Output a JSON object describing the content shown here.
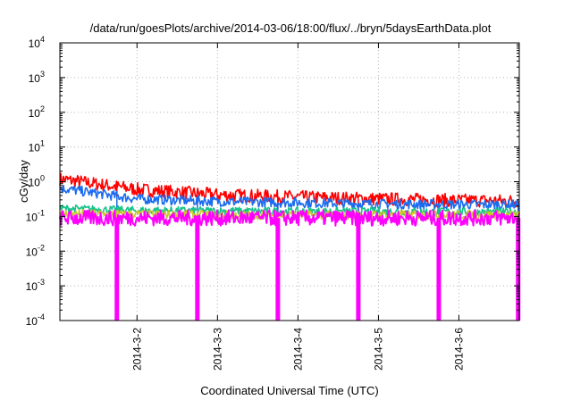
{
  "chart_data": {
    "type": "line",
    "title": "/data/run/goesPlots/archive/2014-03-06/18:00/flux/../bryn/5daysEarthData.plot",
    "xlabel": "Coordinated Universal Time (UTC)",
    "ylabel": "cGy/day",
    "yscale": "log",
    "ylim": [
      0.0001,
      10000
    ],
    "xlim": [
      "2014-03-01 01:00",
      "2014-03-06 18:00"
    ],
    "xticks": [
      "2014-3-2",
      "2014-3-3",
      "2014-3-4",
      "2014-3-5",
      "2014-3-6"
    ],
    "yticks": [
      {
        "base": "10",
        "exp": "-4"
      },
      {
        "base": "10",
        "exp": "-3"
      },
      {
        "base": "10",
        "exp": "-2"
      },
      {
        "base": "10",
        "exp": "-1"
      },
      {
        "base": "10",
        "exp": "0"
      },
      {
        "base": "10",
        "exp": "1"
      },
      {
        "base": "10",
        "exp": "2"
      },
      {
        "base": "10",
        "exp": "3"
      },
      {
        "base": "10",
        "exp": "4"
      }
    ],
    "grid": true,
    "legend": "none",
    "colors": {
      "red": "#ff0000",
      "blue": "#1a6cf0",
      "green": "#17c28c",
      "yellow": "#c9c92a",
      "magenta": "#ff00ff"
    },
    "dropouts": [
      "2014-03-01 18:00",
      "2014-03-02 18:00",
      "2014-03-03 18:00",
      "2014-03-04 18:00",
      "2014-03-05 18:00",
      "2014-03-06 17:40"
    ],
    "series": [
      {
        "color": "#ff0000",
        "x": [
          "2014-03-01 01:00",
          "2014-03-02 00:00",
          "2014-03-03 00:00",
          "2014-03-04 00:00",
          "2014-03-05 00:00",
          "2014-03-06 00:00",
          "2014-03-06 18:00"
        ],
        "values": [
          1.2,
          0.6,
          0.42,
          0.36,
          0.32,
          0.29,
          0.28
        ]
      },
      {
        "color": "#1a6cf0",
        "x": [
          "2014-03-01 01:00",
          "2014-03-02 00:00",
          "2014-03-03 00:00",
          "2014-03-04 00:00",
          "2014-03-05 00:00",
          "2014-03-06 00:00",
          "2014-03-06 18:00"
        ],
        "values": [
          0.65,
          0.32,
          0.27,
          0.25,
          0.23,
          0.22,
          0.22
        ]
      },
      {
        "color": "#17c28c",
        "x": [
          "2014-03-01 01:00",
          "2014-03-02 00:00",
          "2014-03-03 00:00",
          "2014-03-04 00:00",
          "2014-03-05 00:00",
          "2014-03-06 00:00",
          "2014-03-06 18:00"
        ],
        "values": [
          0.17,
          0.15,
          0.145,
          0.14,
          0.14,
          0.135,
          0.135
        ]
      },
      {
        "color": "#c9c92a",
        "x": [
          "2014-03-01 01:00",
          "2014-03-02 00:00",
          "2014-03-03 00:00",
          "2014-03-04 00:00",
          "2014-03-05 00:00",
          "2014-03-06 00:00",
          "2014-03-06 18:00"
        ],
        "values": [
          0.12,
          0.115,
          0.11,
          0.11,
          0.11,
          0.11,
          0.11
        ]
      },
      {
        "color": "#ff00ff",
        "x": [
          "2014-03-01 01:00",
          "2014-03-02 00:00",
          "2014-03-03 00:00",
          "2014-03-04 00:00",
          "2014-03-05 00:00",
          "2014-03-06 00:00",
          "2014-03-06 18:00"
        ],
        "values": [
          0.09,
          0.09,
          0.09,
          0.09,
          0.09,
          0.09,
          0.09
        ]
      }
    ]
  }
}
